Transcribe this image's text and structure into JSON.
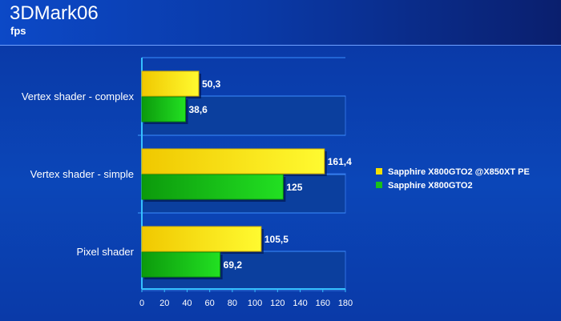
{
  "header": {
    "title": "3DMark06",
    "subtitle": "fps"
  },
  "chart_data": {
    "type": "bar",
    "orientation": "horizontal",
    "categories": [
      "Vertex shader - complex",
      "Vertex shader - simple",
      "Pixel shader"
    ],
    "series": [
      {
        "name": "Sapphire X800GTO2 @X850XT PE",
        "values": [
          50.3,
          161.4,
          105.5
        ],
        "labels": [
          "50,3",
          "161,4",
          "105,5"
        ],
        "color": "#f5e000"
      },
      {
        "name": "Sapphire X800GTO2",
        "values": [
          38.6,
          125,
          69.2
        ],
        "labels": [
          "38,6",
          "125",
          "69,2"
        ],
        "color": "#18c018"
      }
    ],
    "xlim": [
      0,
      180
    ],
    "xticks": [
      0,
      20,
      40,
      60,
      80,
      100,
      120,
      140,
      160,
      180
    ],
    "grid": true,
    "legend_position": "right"
  }
}
